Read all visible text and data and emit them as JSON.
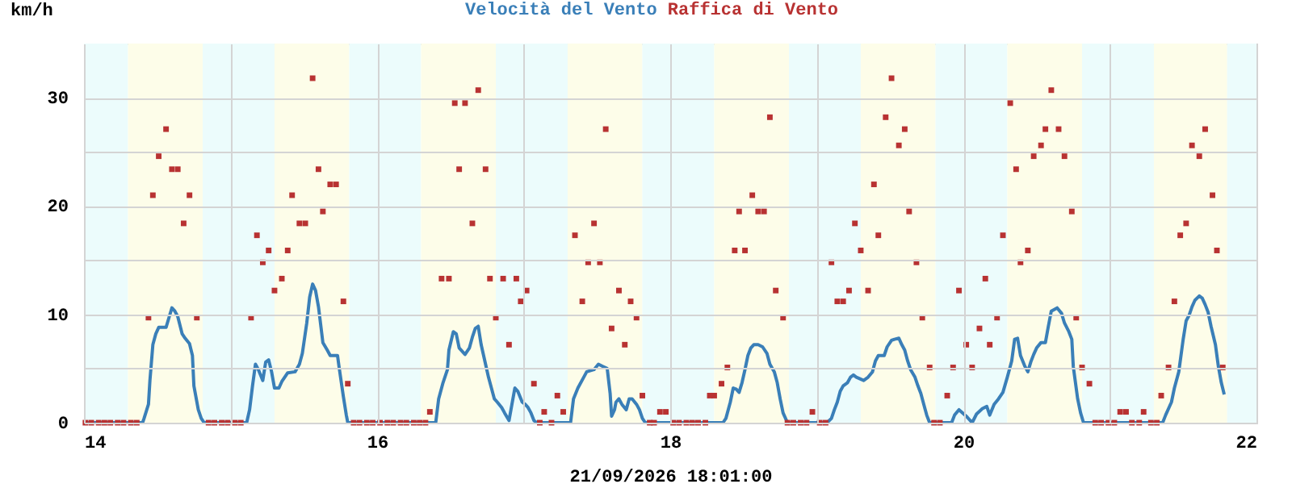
{
  "chart_data": {
    "type": "line",
    "xlabel": "21/09/2026 18:01:00",
    "ylabel": "km/h",
    "xlim": [
      14,
      22
    ],
    "ylim": [
      0,
      35
    ],
    "xticks": [
      14,
      {
        "value": 15,
        "label": null
      },
      16,
      {
        "value": 17,
        "label": null
      },
      18,
      {
        "value": 19,
        "label": null
      },
      20,
      {
        "value": 21,
        "label": null
      },
      22
    ],
    "yticks": [
      0,
      {
        "value": 5,
        "label": null
      },
      10,
      {
        "value": 15,
        "label": null
      },
      20,
      {
        "value": 25,
        "label": null
      },
      30
    ],
    "grid": true,
    "bands": [
      {
        "axis": "x",
        "from": 14,
        "to": 14.3,
        "color": "#ecfcfc"
      },
      {
        "axis": "x",
        "from": 14.3,
        "to": 14.81,
        "color": "#fdfde9"
      },
      {
        "axis": "x",
        "from": 14.81,
        "to": 15.3,
        "color": "#ecfcfc"
      },
      {
        "axis": "x",
        "from": 15.3,
        "to": 15.81,
        "color": "#fdfde9"
      },
      {
        "axis": "x",
        "from": 15.81,
        "to": 16.3,
        "color": "#ecfcfc"
      },
      {
        "axis": "x",
        "from": 16.3,
        "to": 16.81,
        "color": "#fdfde9"
      },
      {
        "axis": "x",
        "from": 16.81,
        "to": 17.3,
        "color": "#ecfcfc"
      },
      {
        "axis": "x",
        "from": 17.3,
        "to": 17.81,
        "color": "#fdfde9"
      },
      {
        "axis": "x",
        "from": 17.81,
        "to": 18.3,
        "color": "#ecfcfc"
      },
      {
        "axis": "x",
        "from": 18.3,
        "to": 18.81,
        "color": "#fdfde9"
      },
      {
        "axis": "x",
        "from": 18.81,
        "to": 19.3,
        "color": "#ecfcfc"
      },
      {
        "axis": "x",
        "from": 19.3,
        "to": 19.81,
        "color": "#fdfde9"
      },
      {
        "axis": "x",
        "from": 19.81,
        "to": 20.3,
        "color": "#ecfcfc"
      },
      {
        "axis": "x",
        "from": 20.3,
        "to": 20.81,
        "color": "#fdfde9"
      },
      {
        "axis": "x",
        "from": 20.81,
        "to": 21.3,
        "color": "#ecfcfc"
      },
      {
        "axis": "x",
        "from": 21.3,
        "to": 21.8,
        "color": "#fdfde9"
      },
      {
        "axis": "x",
        "from": 21.8,
        "to": 22,
        "color": "#ecfcfc"
      }
    ],
    "series": [
      {
        "name": "Velocità del Vento",
        "color": "#3a7fb8",
        "x": [
          14.0,
          14.4,
          14.41,
          14.44,
          14.45,
          14.47,
          14.49,
          14.51,
          14.56,
          14.58,
          14.6,
          14.62,
          14.64,
          14.67,
          14.69,
          14.72,
          14.74,
          14.75,
          14.78,
          14.8,
          14.82,
          15.11,
          15.13,
          15.15,
          15.17,
          15.19,
          15.22,
          15.24,
          15.26,
          15.28,
          15.3,
          15.33,
          15.35,
          15.39,
          15.44,
          15.47,
          15.49,
          15.52,
          15.54,
          15.56,
          15.58,
          15.6,
          15.63,
          15.66,
          15.68,
          15.73,
          15.74,
          15.77,
          15.79,
          15.8,
          16.4,
          16.42,
          16.45,
          16.48,
          16.49,
          16.52,
          16.54,
          16.56,
          16.6,
          16.63,
          16.65,
          16.67,
          16.69,
          16.71,
          16.74,
          16.76,
          16.78,
          16.8,
          16.82,
          16.85,
          16.87,
          16.9,
          16.92,
          16.94,
          16.96,
          16.99,
          17.01,
          17.03,
          17.05,
          17.07,
          17.09,
          17.32,
          17.34,
          17.37,
          17.41,
          17.43,
          17.48,
          17.51,
          17.54,
          17.57,
          17.59,
          17.6,
          17.62,
          17.63,
          17.65,
          17.67,
          17.7,
          17.72,
          17.74,
          17.77,
          17.79,
          17.81,
          17.83,
          18.36,
          18.38,
          18.41,
          18.43,
          18.45,
          18.47,
          18.49,
          18.51,
          18.53,
          18.55,
          18.57,
          18.6,
          18.63,
          18.66,
          18.68,
          18.71,
          18.73,
          18.75,
          18.77,
          18.8,
          19.07,
          19.1,
          19.12,
          19.14,
          19.16,
          19.18,
          19.21,
          19.23,
          19.25,
          19.27,
          19.32,
          19.35,
          19.38,
          19.4,
          19.42,
          19.46,
          19.48,
          19.51,
          19.53,
          19.56,
          19.58,
          19.6,
          19.62,
          19.64,
          19.67,
          19.69,
          19.71,
          19.73,
          19.75,
          19.77,
          19.92,
          19.94,
          19.97,
          20.02,
          20.06,
          20.09,
          20.13,
          20.16,
          20.18,
          20.21,
          20.24,
          20.27,
          20.3,
          20.33,
          20.35,
          20.37,
          20.39,
          20.42,
          20.44,
          20.46,
          20.48,
          20.5,
          20.53,
          20.56,
          20.58,
          20.6,
          20.64,
          20.67,
          20.69,
          20.72,
          20.74,
          20.75,
          20.78,
          20.8,
          20.82,
          21.36,
          21.38,
          21.42,
          21.44,
          21.47,
          21.5,
          21.52,
          21.54,
          21.56,
          21.58,
          21.61,
          21.63,
          21.65,
          21.67,
          21.69,
          21.72,
          21.74,
          21.76,
          21.78
        ],
        "values": [
          0,
          0,
          0.4,
          1.7,
          3.9,
          7.2,
          8.2,
          8.8,
          8.8,
          9.7,
          10.6,
          10.3,
          9.8,
          8.2,
          7.8,
          7.3,
          6.2,
          3.4,
          1.2,
          0.4,
          0,
          0,
          1.2,
          3.4,
          5.4,
          4.9,
          3.9,
          5.6,
          5.8,
          4.7,
          3.2,
          3.2,
          3.8,
          4.6,
          4.7,
          5.4,
          6.4,
          9.2,
          11.6,
          12.8,
          12.2,
          10.7,
          7.4,
          6.7,
          6.2,
          6.2,
          5.2,
          2.4,
          0.7,
          0,
          0,
          2.2,
          3.7,
          4.9,
          6.7,
          8.4,
          8.2,
          6.9,
          6.3,
          6.9,
          7.9,
          8.7,
          8.9,
          7.2,
          5.4,
          4.2,
          3.2,
          2.2,
          1.9,
          1.4,
          0.9,
          0.2,
          1.7,
          3.2,
          2.9,
          1.9,
          1.7,
          1.4,
          0.9,
          0.2,
          0,
          0,
          2.2,
          3.2,
          4.2,
          4.7,
          4.9,
          5.4,
          5.2,
          5.0,
          2.7,
          0.6,
          1.2,
          1.9,
          2.2,
          1.7,
          1.2,
          2.2,
          2.2,
          1.7,
          1.2,
          0.4,
          0,
          0,
          0.4,
          1.9,
          3.2,
          3.1,
          2.8,
          3.7,
          4.9,
          6.2,
          6.9,
          7.2,
          7.2,
          7.0,
          6.4,
          5.4,
          4.7,
          3.7,
          2.2,
          0.9,
          0,
          0,
          0.4,
          1.2,
          1.9,
          2.9,
          3.4,
          3.7,
          4.2,
          4.4,
          4.2,
          3.9,
          4.2,
          4.7,
          5.7,
          6.2,
          6.2,
          7.0,
          7.6,
          7.7,
          7.8,
          7.2,
          6.7,
          5.7,
          4.9,
          4.2,
          3.4,
          2.7,
          1.7,
          0.7,
          0,
          0,
          0.7,
          1.2,
          0.6,
          0,
          0.8,
          1.3,
          1.5,
          0.7,
          1.7,
          2.2,
          2.8,
          4.2,
          5.7,
          7.7,
          7.8,
          6.2,
          5.2,
          4.7,
          5.6,
          6.3,
          6.9,
          7.4,
          7.4,
          8.9,
          10.3,
          10.6,
          10.1,
          9.2,
          8.4,
          7.7,
          5.2,
          2.2,
          0.9,
          0,
          0,
          0.7,
          1.9,
          3.2,
          4.7,
          7.7,
          9.4,
          9.9,
          10.7,
          11.3,
          11.7,
          11.5,
          10.9,
          10.2,
          8.9,
          7.2,
          5.2,
          3.7,
          2.6
        ]
      },
      {
        "name": "Raffica di Vento",
        "type": "scatter",
        "color": "#b83232",
        "x": [
          14.01,
          14.05,
          14.1,
          14.14,
          14.18,
          14.23,
          14.27,
          14.32,
          14.36,
          14.44,
          14.47,
          14.51,
          14.56,
          14.6,
          14.64,
          14.68,
          14.72,
          14.77,
          14.85,
          14.89,
          14.94,
          14.98,
          15.03,
          15.07,
          15.14,
          15.18,
          15.22,
          15.26,
          15.3,
          15.35,
          15.39,
          15.42,
          15.47,
          15.51,
          15.56,
          15.6,
          15.63,
          15.68,
          15.72,
          15.77,
          15.8,
          15.84,
          15.88,
          15.93,
          15.97,
          16.02,
          16.07,
          16.11,
          16.16,
          16.2,
          16.25,
          16.29,
          16.33,
          16.36,
          16.44,
          16.49,
          16.53,
          16.56,
          16.6,
          16.65,
          16.69,
          16.74,
          16.77,
          16.81,
          16.86,
          16.9,
          16.95,
          16.98,
          17.02,
          17.07,
          17.11,
          17.14,
          17.19,
          17.23,
          17.27,
          17.35,
          17.4,
          17.44,
          17.48,
          17.52,
          17.56,
          17.6,
          17.65,
          17.69,
          17.73,
          17.77,
          17.81,
          17.86,
          17.89,
          17.93,
          17.97,
          18.02,
          18.06,
          18.11,
          18.15,
          18.19,
          18.24,
          18.27,
          18.3,
          18.35,
          18.39,
          18.44,
          18.47,
          18.51,
          18.56,
          18.6,
          18.64,
          18.68,
          18.72,
          18.77,
          18.8,
          18.84,
          18.89,
          18.93,
          18.97,
          19.02,
          19.06,
          19.1,
          19.14,
          19.18,
          19.22,
          19.26,
          19.3,
          19.35,
          19.39,
          19.42,
          19.47,
          19.51,
          19.56,
          19.6,
          19.63,
          19.68,
          19.72,
          19.77,
          19.8,
          19.84,
          19.89,
          19.93,
          19.97,
          20.02,
          20.06,
          20.11,
          20.15,
          20.18,
          20.23,
          20.27,
          20.32,
          20.36,
          20.39,
          20.44,
          20.48,
          20.53,
          20.56,
          20.6,
          20.65,
          20.69,
          20.74,
          20.77,
          20.81,
          20.86,
          20.9,
          20.94,
          20.99,
          21.03,
          21.07,
          21.11,
          21.15,
          21.2,
          21.23,
          21.28,
          21.32,
          21.35,
          21.4,
          21.44,
          21.48,
          21.52,
          21.56,
          21.61,
          21.65,
          21.7,
          21.73,
          21.77
        ],
        "values": [
          0,
          0,
          0,
          0,
          0,
          0,
          0,
          0,
          0,
          9.7,
          21.0,
          24.6,
          27.1,
          23.4,
          23.4,
          18.4,
          21.0,
          9.7,
          0,
          0,
          0,
          0,
          0,
          0,
          9.7,
          17.3,
          14.8,
          15.9,
          12.2,
          13.3,
          15.9,
          21.0,
          18.4,
          18.4,
          31.8,
          23.4,
          19.5,
          22.0,
          22.0,
          11.2,
          3.6,
          0,
          0,
          0,
          0,
          0,
          0,
          0,
          0,
          0,
          0,
          0,
          0,
          1.0,
          13.3,
          13.3,
          29.5,
          23.4,
          29.5,
          18.4,
          30.7,
          23.4,
          13.3,
          9.7,
          13.3,
          7.2,
          13.3,
          11.2,
          12.2,
          3.6,
          0,
          1.0,
          0,
          2.5,
          1.0,
          17.3,
          11.2,
          14.8,
          18.4,
          14.8,
          27.1,
          8.7,
          12.2,
          7.2,
          11.2,
          9.7,
          2.5,
          0,
          0,
          1.0,
          1.0,
          0,
          0,
          0,
          0,
          0,
          0,
          2.5,
          2.5,
          3.6,
          5.1,
          15.9,
          19.5,
          15.9,
          21.0,
          19.5,
          19.5,
          28.2,
          12.2,
          9.7,
          0,
          0,
          0,
          0,
          1.0,
          0,
          0,
          14.8,
          11.2,
          11.2,
          12.2,
          18.4,
          15.9,
          12.2,
          22.0,
          17.3,
          28.2,
          31.8,
          25.6,
          27.1,
          19.5,
          14.8,
          9.7,
          5.1,
          0,
          0,
          2.5,
          5.1,
          12.2,
          7.2,
          5.1,
          8.7,
          13.3,
          7.2,
          9.7,
          17.3,
          29.5,
          23.4,
          14.8,
          15.9,
          24.6,
          25.6,
          27.1,
          30.7,
          27.1,
          24.6,
          19.5,
          9.7,
          5.1,
          3.6,
          0,
          0,
          0,
          0,
          1.0,
          1.0,
          0,
          0,
          1.0,
          0,
          0,
          2.5,
          5.1,
          11.2,
          17.3,
          18.4,
          25.6,
          24.6,
          27.1,
          21.0,
          15.9,
          5.1
        ]
      }
    ]
  }
}
